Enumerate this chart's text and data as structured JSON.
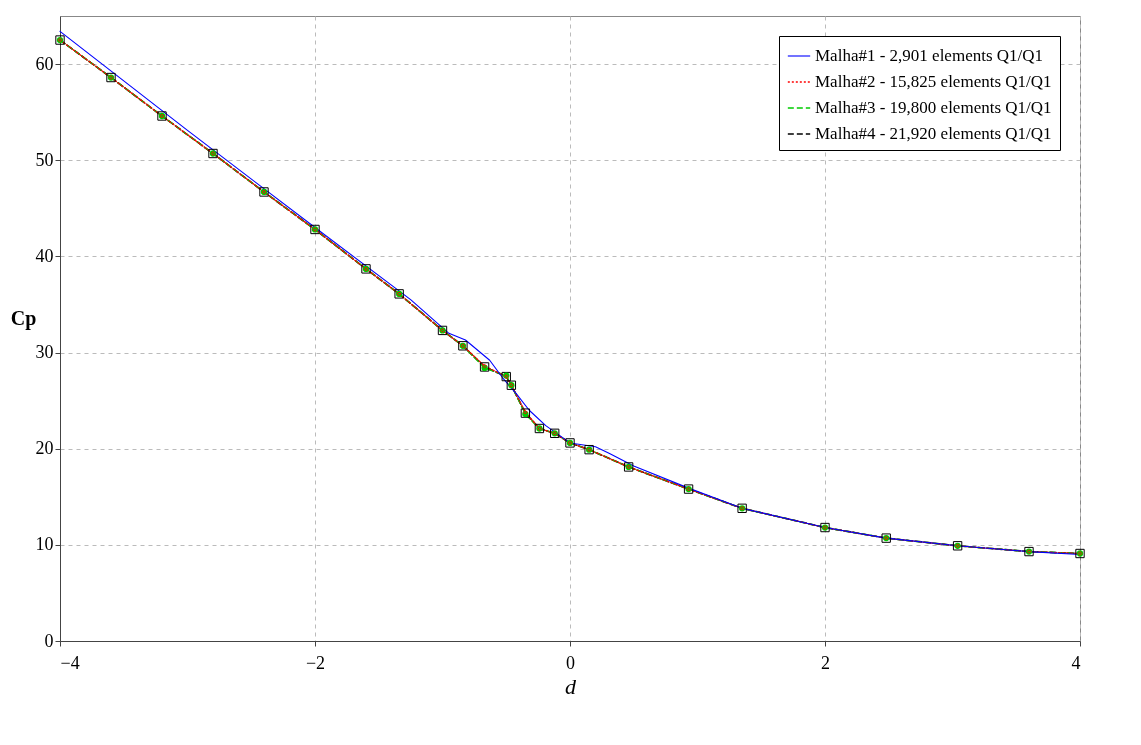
{
  "chart_data": {
    "type": "line",
    "xlabel": "d",
    "ylabel": "Cp",
    "xlim": [
      -4,
      4
    ],
    "xticks": [
      -4,
      -2,
      0,
      2,
      4
    ],
    "ylim": [
      0,
      65
    ],
    "yticks": [
      0,
      10,
      20,
      30,
      40,
      50,
      60
    ],
    "grid": true,
    "legend": "top right",
    "series": [
      {
        "name": "Malha#1 - 2,901 elements Q1/Q1",
        "color": "#0000ff",
        "line_style": "solid",
        "marker": "none",
        "x": [
          -4,
          -3,
          -2,
          -1.25,
          -0.95,
          -0.82,
          -0.63,
          -0.53,
          -0.42,
          -0.32,
          -0.19,
          0,
          0.2,
          0.31,
          0.5,
          0.93,
          1.35,
          2,
          2.48,
          3.04,
          3.6,
          4
        ],
        "values": [
          63.4,
          53.1,
          43.0,
          35.5,
          32.0,
          31.3,
          29.2,
          27.4,
          25.7,
          24.0,
          22.4,
          20.6,
          20.2,
          19.5,
          18.2,
          15.9,
          13.8,
          11.8,
          10.7,
          9.9,
          9.3,
          9.0
        ]
      },
      {
        "name": "Malha#2 - 15,825 elements Q1/Q1",
        "color": "#ff0000",
        "line_style": "dotted",
        "marker": "diamond",
        "x": [
          -4,
          -3.6,
          -3.2,
          -2.8,
          -2.4,
          -2,
          -1.6,
          -1.34,
          -1.0,
          -0.84,
          -0.67,
          -0.5,
          -0.46,
          -0.35,
          -0.24,
          -0.12,
          0,
          0.15,
          0.46,
          0.93,
          1.35,
          2,
          2.48,
          3.04,
          3.6,
          4
        ],
        "values": [
          62.5,
          58.6,
          54.6,
          50.7,
          46.7,
          42.8,
          38.7,
          36.1,
          32.3,
          30.7,
          28.6,
          27.5,
          26.6,
          23.8,
          22.1,
          21.6,
          20.6,
          19.9,
          18.1,
          15.8,
          13.8,
          11.8,
          10.7,
          9.9,
          9.3,
          9.1
        ]
      },
      {
        "name": "Malha#3 - 19,800 elements Q1/Q1",
        "color": "#00cc00",
        "line_style": "dashed",
        "marker": "circle",
        "x": [
          -4,
          -3.6,
          -3.2,
          -2.8,
          -2.4,
          -2,
          -1.6,
          -1.34,
          -1.0,
          -0.84,
          -0.67,
          -0.5,
          -0.46,
          -0.35,
          -0.24,
          -0.12,
          0,
          0.15,
          0.46,
          0.93,
          1.35,
          2,
          2.48,
          3.04,
          3.6,
          4
        ],
        "values": [
          62.5,
          58.6,
          54.6,
          50.7,
          46.7,
          42.8,
          38.7,
          36.1,
          32.3,
          30.7,
          28.4,
          27.6,
          26.6,
          23.6,
          22.1,
          21.6,
          20.6,
          19.9,
          18.1,
          15.8,
          13.8,
          11.8,
          10.7,
          9.9,
          9.3,
          9.1
        ]
      },
      {
        "name": "Malha#4 - 21,920 elements Q1/Q1",
        "color": "#000000",
        "line_style": "dashed",
        "marker": "square",
        "x": [
          -4,
          -3.6,
          -3.2,
          -2.8,
          -2.4,
          -2,
          -1.6,
          -1.34,
          -1.0,
          -0.84,
          -0.67,
          -0.5,
          -0.46,
          -0.35,
          -0.24,
          -0.12,
          0,
          0.15,
          0.46,
          0.93,
          1.35,
          2,
          2.48,
          3.04,
          3.6,
          4
        ],
        "values": [
          62.5,
          58.6,
          54.6,
          50.7,
          46.7,
          42.8,
          38.7,
          36.1,
          32.3,
          30.7,
          28.5,
          27.5,
          26.6,
          23.7,
          22.1,
          21.6,
          20.6,
          19.9,
          18.1,
          15.8,
          13.8,
          11.8,
          10.7,
          9.9,
          9.3,
          9.1
        ]
      }
    ]
  }
}
